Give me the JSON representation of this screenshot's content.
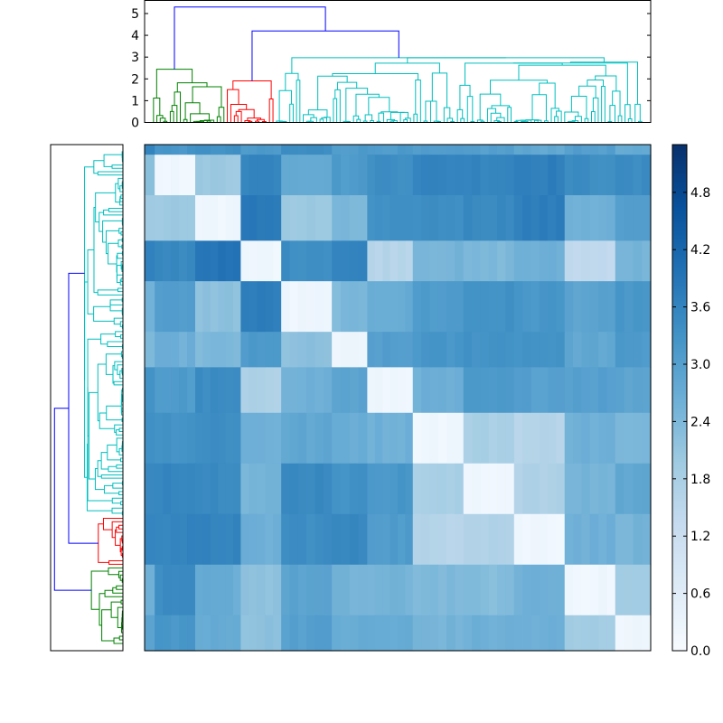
{
  "chart_data": [
    {
      "type": "dendrogram",
      "orientation": "top",
      "ylim": [
        0,
        5.6
      ],
      "yticks": [
        "0",
        "1",
        "2",
        "3",
        "4",
        "5"
      ],
      "colors": {
        "link": "#0000ff",
        "cluster1": "#008000",
        "cluster2": "#ff0000",
        "cluster3": "#00bfbf"
      },
      "clusters": [
        {
          "color": "cluster1",
          "fraction": 0.15
        },
        {
          "color": "cluster2",
          "fraction": 0.1
        },
        {
          "color": "cluster3",
          "fraction": 0.75
        }
      ],
      "top_merges": [
        5.3,
        4.2,
        3.3,
        2.5,
        2.25
      ]
    },
    {
      "type": "dendrogram",
      "orientation": "left",
      "clusters": [
        {
          "color": "cluster3",
          "fraction": 0.74
        },
        {
          "color": "cluster2",
          "fraction": 0.1
        },
        {
          "color": "cluster1",
          "fraction": 0.16
        }
      ],
      "top_merges": [
        5.3,
        4.2,
        3.3,
        2.5,
        2.25
      ]
    },
    {
      "type": "heatmap",
      "cmap": "Blues",
      "colorbar": {
        "min": 0.0,
        "max": 5.3,
        "ticks": [
          "0.0",
          "0.6",
          "1.2",
          "1.8",
          "2.4",
          "3.0",
          "3.6",
          "4.2",
          "4.8"
        ]
      },
      "block_boundaries": [
        0,
        0.02,
        0.1,
        0.19,
        0.27,
        0.37,
        0.44,
        0.53,
        0.63,
        0.73,
        0.83,
        0.93,
        1.0
      ],
      "block_values": [
        [
          3.6,
          3.2,
          3.3,
          3.1,
          3.4,
          3.1,
          3.1,
          3.0,
          3.0,
          2.8,
          3.0,
          2.7
        ],
        [
          2.2,
          0.2,
          2.0,
          3.6,
          2.8,
          3.1,
          3.4,
          3.6,
          3.6,
          3.7,
          3.4,
          3.4
        ],
        [
          2.0,
          2.0,
          0.2,
          3.8,
          2.0,
          2.4,
          3.3,
          3.4,
          3.5,
          3.7,
          2.6,
          3.0
        ],
        [
          3.6,
          3.5,
          3.9,
          0.2,
          3.4,
          3.6,
          1.6,
          2.5,
          2.4,
          2.6,
          1.4,
          2.5
        ],
        [
          2.6,
          3.0,
          2.2,
          3.7,
          0.2,
          2.4,
          2.7,
          3.1,
          3.3,
          3.2,
          2.9,
          3.2
        ],
        [
          2.4,
          2.6,
          2.4,
          3.1,
          2.2,
          0.2,
          3.0,
          3.2,
          3.3,
          3.3,
          2.8,
          3.1
        ],
        [
          3.3,
          3.1,
          3.4,
          1.7,
          2.6,
          2.9,
          0.2,
          2.6,
          3.1,
          3.0,
          3.0,
          2.9
        ],
        [
          3.4,
          3.3,
          3.4,
          2.6,
          2.8,
          2.7,
          2.6,
          0.2,
          1.8,
          1.6,
          2.6,
          2.4
        ],
        [
          3.5,
          3.6,
          3.5,
          2.5,
          3.5,
          3.3,
          3.2,
          1.8,
          0.2,
          1.7,
          2.5,
          2.8
        ],
        [
          3.6,
          3.6,
          3.6,
          2.6,
          3.4,
          3.5,
          3.1,
          1.6,
          1.7,
          0.2,
          2.6,
          2.5
        ],
        [
          2.6,
          3.4,
          2.7,
          2.2,
          2.9,
          2.5,
          2.5,
          2.4,
          2.3,
          2.6,
          0.2,
          1.9
        ],
        [
          2.9,
          3.2,
          2.7,
          2.2,
          3.0,
          2.7,
          2.7,
          2.5,
          2.6,
          2.6,
          1.9,
          0.2
        ]
      ]
    }
  ]
}
